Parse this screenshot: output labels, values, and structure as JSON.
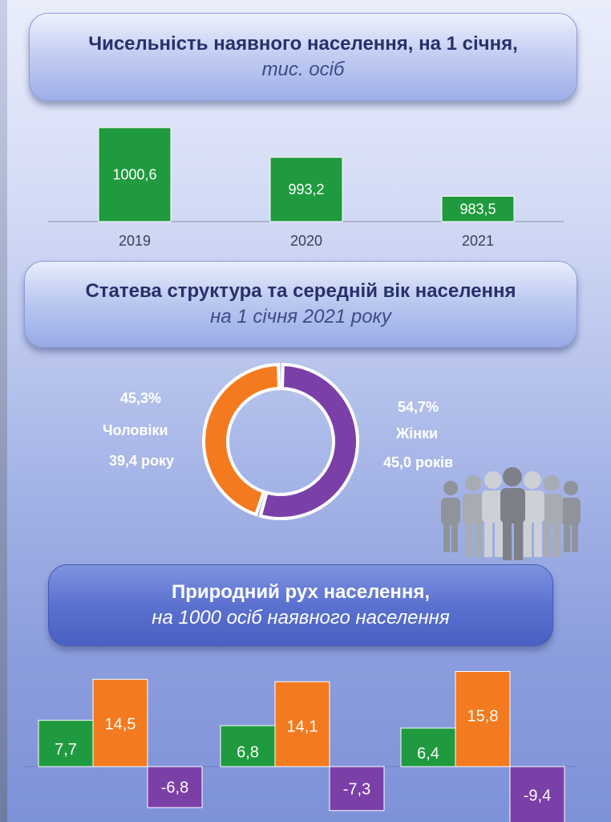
{
  "population": {
    "title_line1": "Чисельність наявного населення, на 1 січня,",
    "title_line2": "тис. осіб"
  },
  "gender": {
    "title_line1": "Статева структура та середній вік населення",
    "title_line2": "на 1 січня 2021 року",
    "men": {
      "percent": "45,3%",
      "label": "Чоловіки",
      "age": "39,4 року"
    },
    "women": {
      "percent": "54,7%",
      "label": "Жінки",
      "age": "45,0 років"
    }
  },
  "natural": {
    "title_line1": "Природний рух населення,",
    "title_line2": "на 1000 осіб наявного населення"
  },
  "colors": {
    "green": "#1f9a3e",
    "orange": "#f47a1f",
    "purple": "#7b3fa8",
    "people": "#b4b7bf"
  },
  "icons": [
    "people-group-icon"
  ],
  "chart_data": [
    {
      "type": "bar",
      "categories": [
        "2019",
        "2020",
        "2021"
      ],
      "values": [
        1000.6,
        993.2,
        983.5
      ],
      "value_labels": [
        "1000,6",
        "993,2",
        "983,5"
      ],
      "color": "#1f9a3e"
    },
    {
      "type": "pie",
      "labels": [
        "Чоловіки",
        "Жінки"
      ],
      "values": [
        45.3,
        54.7
      ],
      "colors": [
        "#f47a1f",
        "#7b3fa8"
      ]
    },
    {
      "type": "bar",
      "groups": 3,
      "series": [
        {
          "values": [
            7.7,
            6.8,
            6.4
          ],
          "labels": [
            "7,7",
            "6,8",
            "6,4"
          ],
          "color": "#1f9a3e"
        },
        {
          "values": [
            14.5,
            14.1,
            15.8
          ],
          "labels": [
            "14,5",
            "14,1",
            "15,8"
          ],
          "color": "#f47a1f"
        },
        {
          "values": [
            -6.8,
            -7.3,
            -9.4
          ],
          "labels": [
            "-6,8",
            "-7,3",
            "-9,4"
          ],
          "color": "#7b3fa8"
        }
      ]
    }
  ]
}
